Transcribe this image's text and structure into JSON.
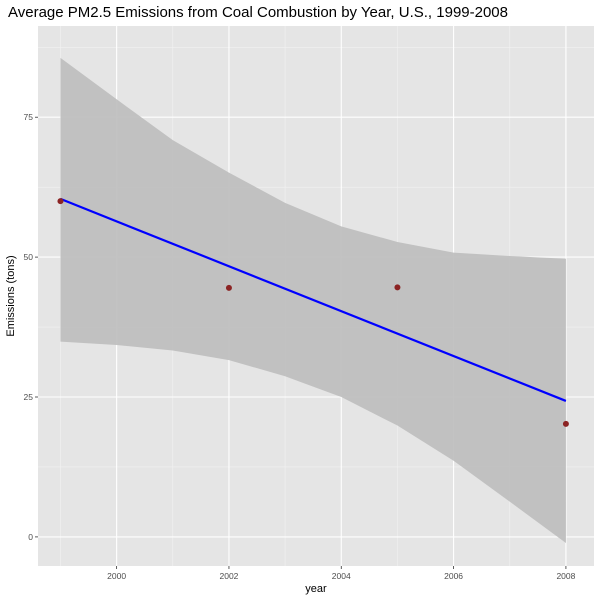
{
  "chart_data": {
    "type": "scatter",
    "title": "Average PM2.5 Emissions from Coal Combustion by Year, U.S., 1999-2008",
    "xlabel": "year",
    "ylabel": "Emissions (tons)",
    "xlim": [
      1998.6,
      2008.5
    ],
    "ylim": [
      -5.2,
      91.3
    ],
    "x_ticks": [
      2000,
      2002,
      2004,
      2006,
      2008
    ],
    "y_ticks": [
      0,
      25,
      50,
      75
    ],
    "grid": true,
    "legend": "none",
    "points": [
      {
        "x": 1999,
        "y": 60.0
      },
      {
        "x": 2002,
        "y": 44.5
      },
      {
        "x": 2005,
        "y": 44.6
      },
      {
        "x": 2008,
        "y": 20.2
      }
    ],
    "fit_line": {
      "method": "linear",
      "start": {
        "x": 1999,
        "y": 60.4
      },
      "end": {
        "x": 2008,
        "y": 24.3
      }
    },
    "confidence_band": {
      "x": [
        1999,
        2000,
        2001,
        2002,
        2003,
        2004,
        2005,
        2006,
        2007,
        2008
      ],
      "lower": [
        34.9,
        34.3,
        33.3,
        31.6,
        28.7,
        25.0,
        19.9,
        13.6,
        6.3,
        -1.1
      ],
      "upper": [
        85.6,
        78.2,
        70.9,
        65.1,
        59.7,
        55.5,
        52.7,
        50.8,
        50.2,
        49.7
      ]
    },
    "colors": {
      "panel_background": "#e5e5e5",
      "grid_major": "#ffffff",
      "grid_minor": "#f2f2f2",
      "band": "#bdbdbd",
      "fit_line": "#0000ff",
      "points": "#8b2323"
    }
  }
}
